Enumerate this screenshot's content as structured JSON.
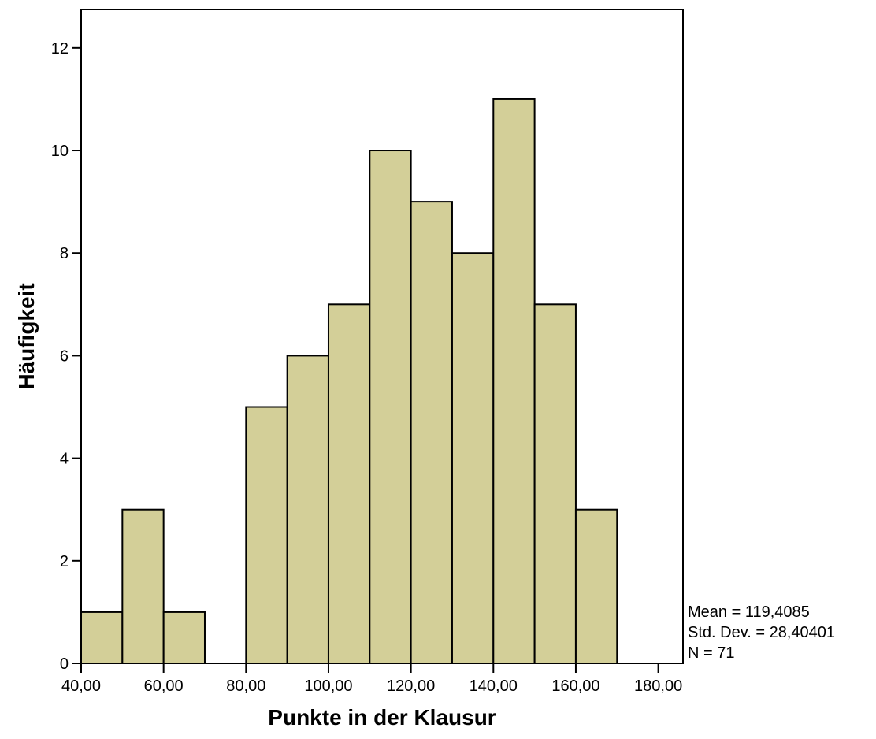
{
  "chart_data": {
    "type": "bar",
    "title": "",
    "xlabel": "Punkte in der Klausur",
    "ylabel": "Häufigkeit",
    "bins": [
      {
        "start": 40,
        "end": 50,
        "count": 1
      },
      {
        "start": 50,
        "end": 60,
        "count": 3
      },
      {
        "start": 60,
        "end": 70,
        "count": 1
      },
      {
        "start": 70,
        "end": 80,
        "count": 0
      },
      {
        "start": 80,
        "end": 90,
        "count": 5
      },
      {
        "start": 90,
        "end": 100,
        "count": 6
      },
      {
        "start": 100,
        "end": 110,
        "count": 7
      },
      {
        "start": 110,
        "end": 120,
        "count": 10
      },
      {
        "start": 120,
        "end": 130,
        "count": 9
      },
      {
        "start": 130,
        "end": 140,
        "count": 8
      },
      {
        "start": 140,
        "end": 150,
        "count": 11
      },
      {
        "start": 150,
        "end": 160,
        "count": 7
      },
      {
        "start": 160,
        "end": 170,
        "count": 3
      }
    ],
    "xlim": [
      40,
      186
    ],
    "ylim": [
      0,
      12.75
    ],
    "x_ticks": [
      40,
      60,
      80,
      100,
      120,
      140,
      160,
      180
    ],
    "x_tick_labels": [
      "40,00",
      "60,00",
      "80,00",
      "100,00",
      "120,00",
      "140,00",
      "160,00",
      "180,00"
    ],
    "y_ticks": [
      0,
      2,
      4,
      6,
      8,
      10,
      12
    ],
    "y_tick_labels": [
      "0",
      "2",
      "4",
      "6",
      "8",
      "10",
      "12"
    ],
    "bar_color": "#d3cf98",
    "stats": {
      "mean": "Mean = 119,4085",
      "std_dev": "Std. Dev. = 28,40401",
      "n": "N = 71"
    },
    "grid": false,
    "legend": "none"
  }
}
